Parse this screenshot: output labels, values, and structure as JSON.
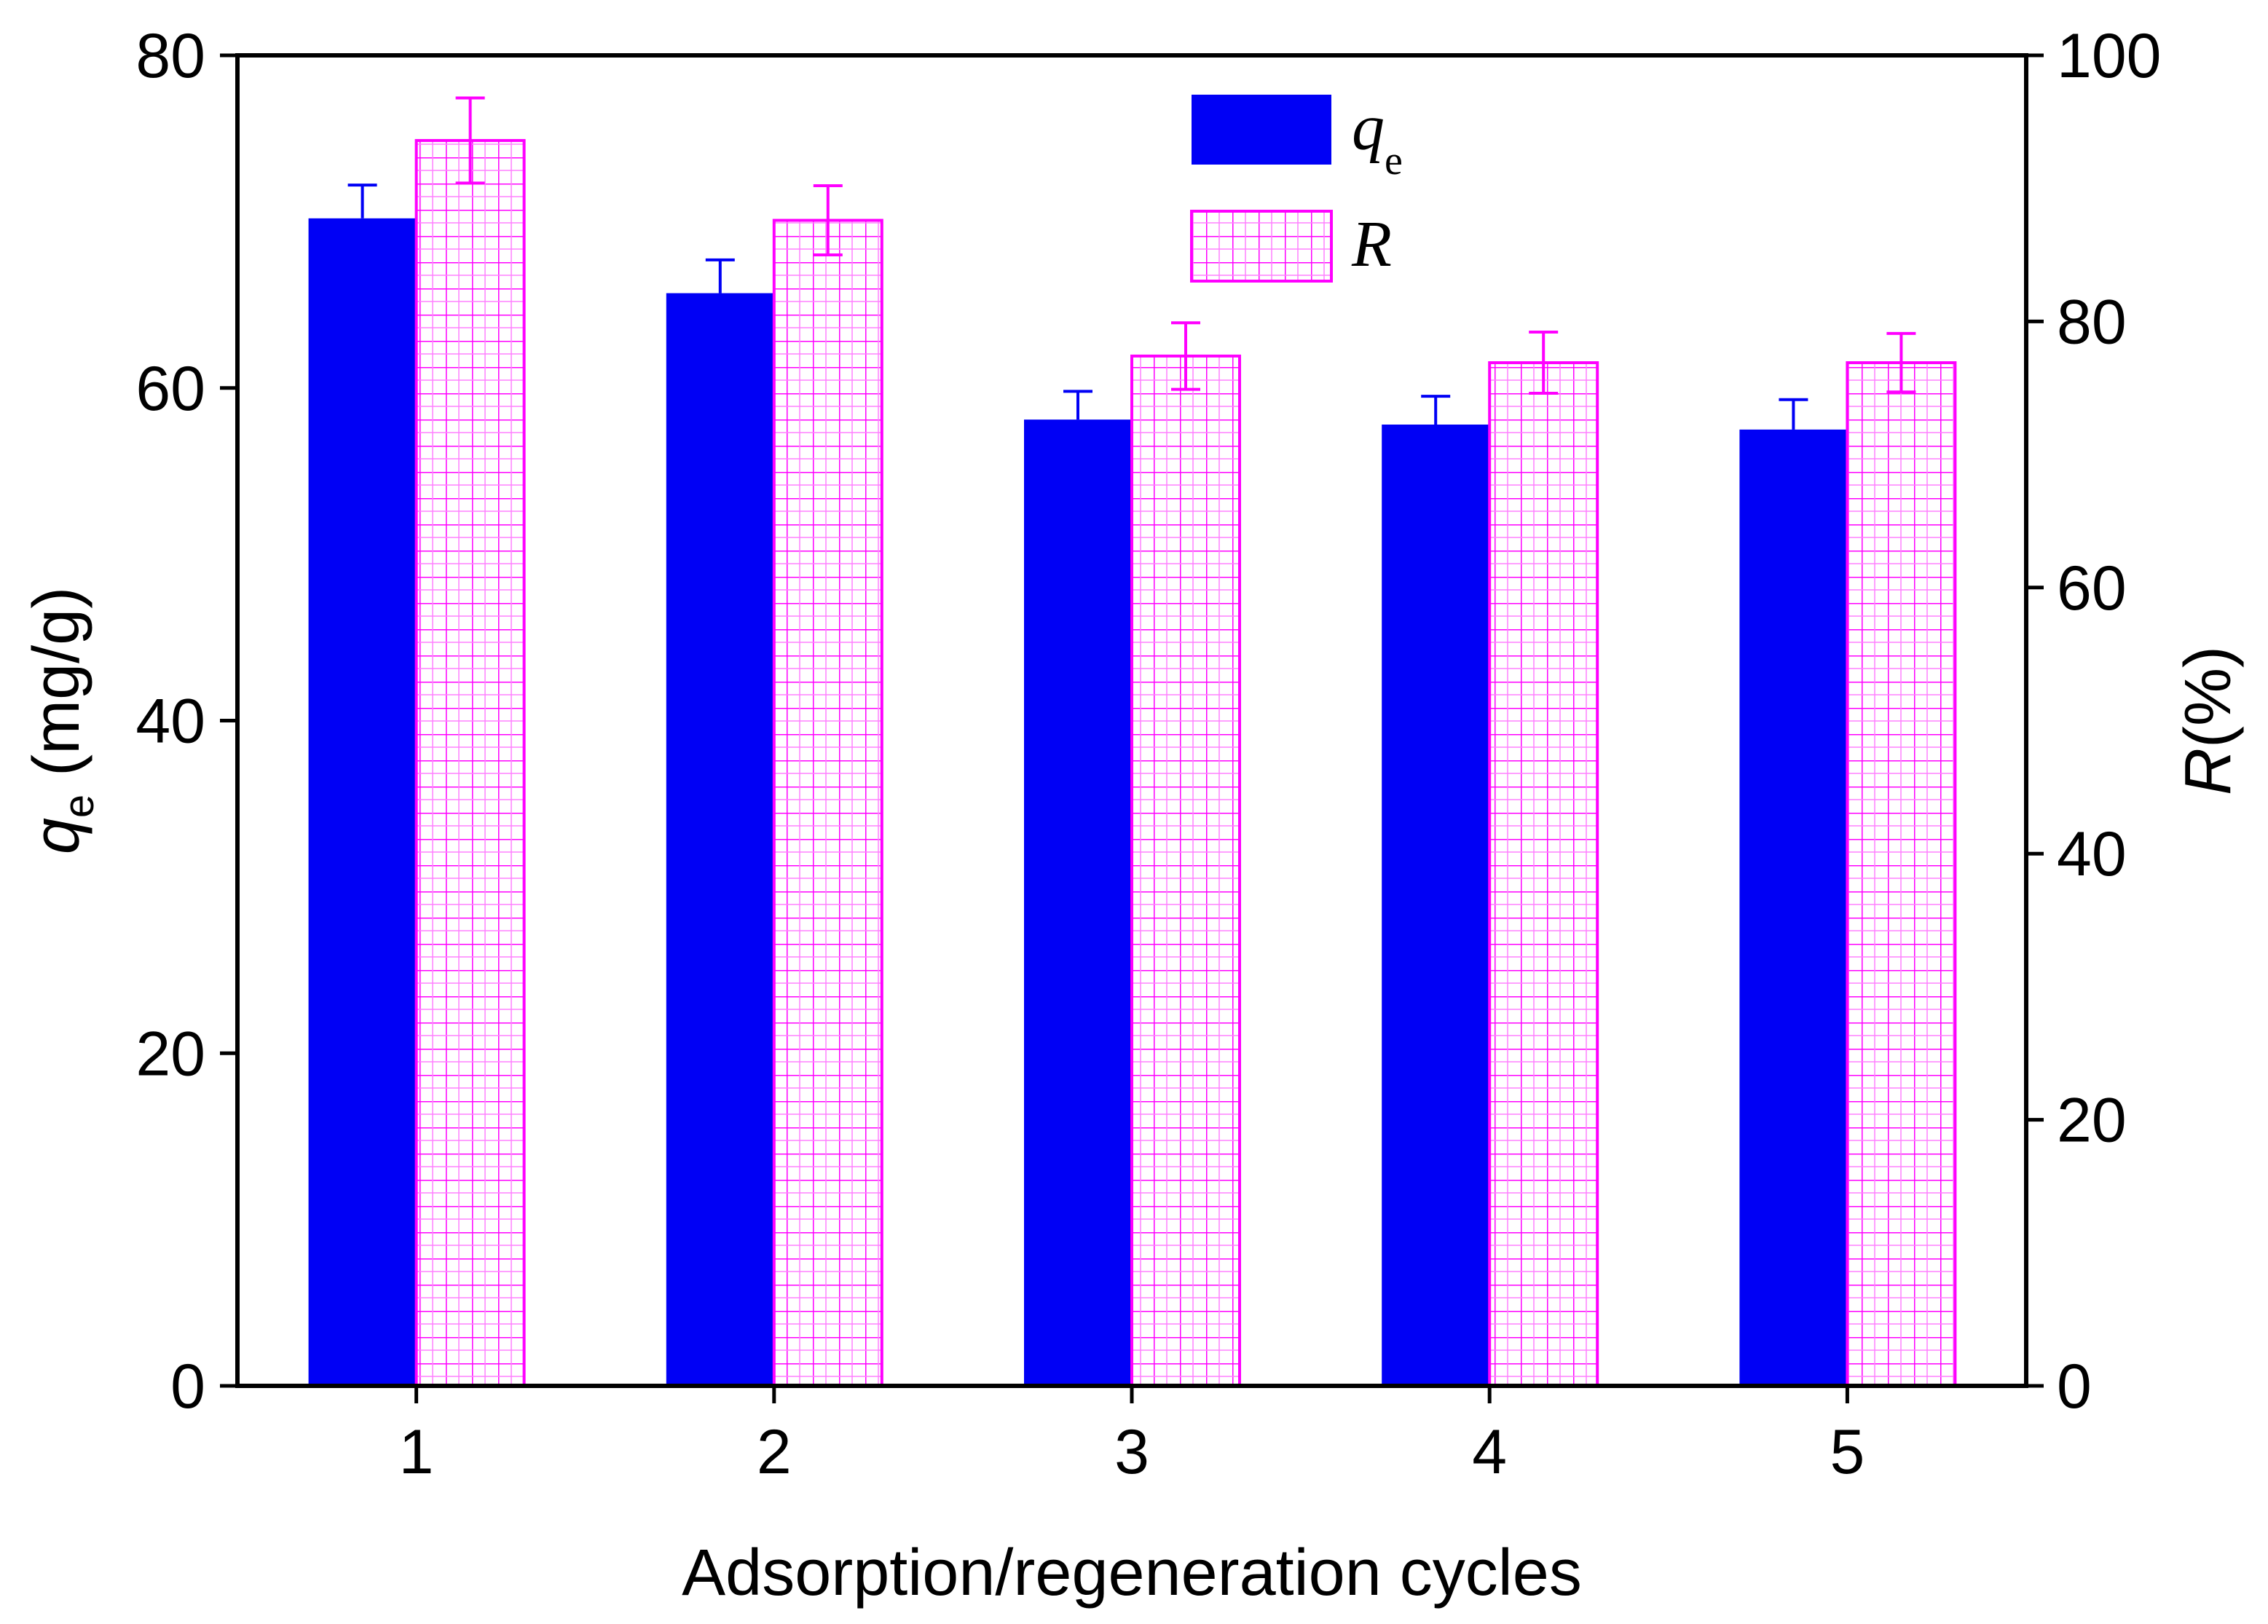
{
  "chart_data": {
    "type": "bar",
    "categories": [
      "1",
      "2",
      "3",
      "4",
      "5"
    ],
    "xlabel": "Adsorption/regeneration cycles",
    "ylabel_left": {
      "symbol": "q",
      "subscript": "e",
      "unit": " (mg/g)"
    },
    "ylabel_right": {
      "symbol": "R",
      "unit": "(%)"
    },
    "ylim_left": [
      0,
      80
    ],
    "ylim_right": [
      0,
      100
    ],
    "yticks_left": [
      0,
      20,
      40,
      60,
      80
    ],
    "yticks_right": [
      0,
      20,
      40,
      60,
      80,
      100
    ],
    "yticks_left_labels": [
      "0",
      "20",
      "40",
      "60",
      "80"
    ],
    "yticks_right_labels": [
      "0",
      "20",
      "40",
      "60",
      "80",
      "100"
    ],
    "series": [
      {
        "name": "qe",
        "legend_symbol": "q",
        "legend_subscript": "e",
        "axis": "left",
        "values": [
          70.2,
          65.7,
          58.1,
          57.8,
          57.5
        ],
        "errors": [
          2.0,
          2.0,
          1.7,
          1.7,
          1.8
        ],
        "color": "#0000f5",
        "pattern": "solid"
      },
      {
        "name": "R",
        "legend_symbol": "R",
        "axis": "right",
        "values": [
          93.6,
          87.6,
          77.4,
          76.9,
          76.9
        ],
        "errors": [
          3.2,
          2.6,
          2.5,
          2.3,
          2.2
        ],
        "color": "#ff00ff",
        "pattern": "grid"
      }
    ],
    "legend_position": "top-center",
    "grid": false
  }
}
